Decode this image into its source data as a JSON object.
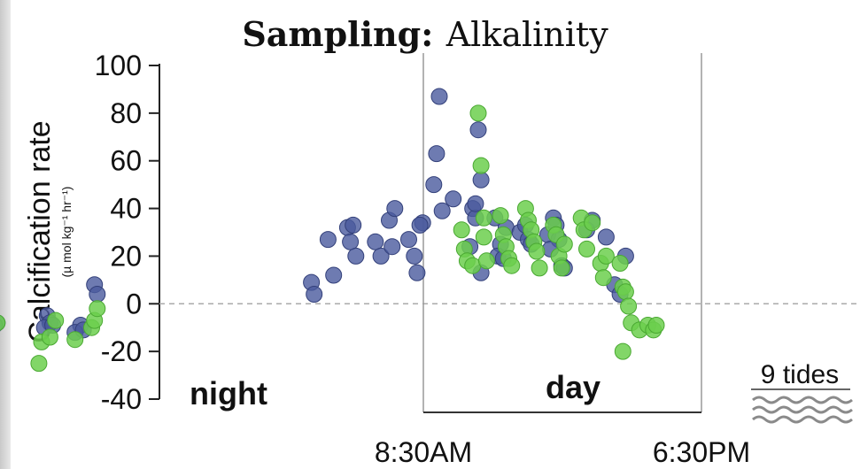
{
  "chart_data": {
    "type": "scatter",
    "title_bold": "Sampling:",
    "title_rest": "Alkalinity",
    "ylabel": "Calcification rate",
    "ylabel_units": "(µ mol kg⁻¹ hr⁻¹)",
    "ylim": [
      -40,
      100
    ],
    "yticks": [
      "100",
      "80",
      "60",
      "40",
      "20",
      "0",
      "-20",
      "-40"
    ],
    "ytick_values": [
      100,
      80,
      60,
      40,
      20,
      0,
      -20,
      -40
    ],
    "zero_line": true,
    "period_labels": {
      "night": "night",
      "day": "day"
    },
    "time_labels": {
      "start": "8:30AM",
      "end": "6:30PM"
    },
    "tides_label": "9 tides",
    "colors": {
      "blue": "#4a5a9e",
      "green": "#6ccf4e",
      "grid": "#999999"
    },
    "series": [
      {
        "color": "blue",
        "points": [
          [
            2.0,
            -7
          ],
          [
            2.2,
            -8
          ],
          [
            2.1,
            -9
          ],
          [
            4.0,
            -5
          ],
          [
            4.1,
            -8
          ],
          [
            3.9,
            -10
          ],
          [
            4.2,
            -9
          ],
          [
            5.2,
            -9
          ],
          [
            5.0,
            -12
          ],
          [
            5.3,
            -11
          ],
          [
            5.7,
            8
          ],
          [
            5.8,
            4
          ],
          [
            13.5,
            9
          ],
          [
            13.6,
            4
          ],
          [
            14.1,
            27
          ],
          [
            14.3,
            12
          ],
          [
            14.8,
            32
          ],
          [
            15.0,
            33
          ],
          [
            14.9,
            26
          ],
          [
            15.1,
            20
          ],
          [
            15.8,
            26
          ],
          [
            16.0,
            20
          ],
          [
            16.3,
            35
          ],
          [
            16.5,
            40
          ],
          [
            16.4,
            24
          ],
          [
            17.0,
            27
          ],
          [
            17.2,
            20
          ],
          [
            17.3,
            13
          ],
          [
            17.5,
            34
          ],
          [
            17.4,
            33
          ],
          [
            17.9,
            50
          ],
          [
            18.0,
            63
          ],
          [
            18.1,
            87
          ],
          [
            18.2,
            39
          ],
          [
            18.6,
            44
          ],
          [
            19.3,
            40
          ],
          [
            19.4,
            36
          ],
          [
            19.5,
            73
          ],
          [
            19.6,
            52
          ],
          [
            19.4,
            42
          ],
          [
            19.2,
            24
          ],
          [
            19.6,
            13
          ],
          [
            20.1,
            36
          ],
          [
            20.3,
            25
          ],
          [
            20.2,
            20
          ],
          [
            20.4,
            19
          ],
          [
            20.5,
            32
          ],
          [
            21.0,
            30
          ],
          [
            21.2,
            33
          ],
          [
            21.3,
            27
          ],
          [
            21.4,
            25
          ],
          [
            22.0,
            29
          ],
          [
            22.2,
            36
          ],
          [
            22.3,
            33
          ],
          [
            22.4,
            27
          ],
          [
            22.1,
            23
          ],
          [
            22.5,
            16
          ],
          [
            22.6,
            15
          ],
          [
            23.4,
            31
          ],
          [
            23.6,
            35
          ],
          [
            24.1,
            28
          ],
          [
            24.4,
            8
          ],
          [
            24.6,
            4
          ],
          [
            24.8,
            20
          ]
        ]
      },
      {
        "color": "green",
        "points": [
          [
            1.9,
            -10
          ],
          [
            1.9,
            -21
          ],
          [
            2.2,
            -8
          ],
          [
            3.8,
            -16
          ],
          [
            3.7,
            -25
          ],
          [
            4.1,
            -14
          ],
          [
            4.3,
            -7
          ],
          [
            5.0,
            -15
          ],
          [
            5.6,
            -10
          ],
          [
            5.7,
            -7
          ],
          [
            5.8,
            -2
          ],
          [
            18.9,
            31
          ],
          [
            19.0,
            23
          ],
          [
            19.1,
            18
          ],
          [
            19.3,
            16
          ],
          [
            19.5,
            80
          ],
          [
            19.6,
            58
          ],
          [
            19.7,
            36
          ],
          [
            19.7,
            28
          ],
          [
            19.8,
            18
          ],
          [
            20.3,
            37
          ],
          [
            20.4,
            29
          ],
          [
            20.5,
            24
          ],
          [
            20.6,
            19
          ],
          [
            20.7,
            16
          ],
          [
            21.2,
            40
          ],
          [
            21.3,
            35
          ],
          [
            21.4,
            31
          ],
          [
            21.5,
            26
          ],
          [
            21.6,
            22
          ],
          [
            21.7,
            15
          ],
          [
            22.2,
            33
          ],
          [
            22.3,
            29
          ],
          [
            22.4,
            20
          ],
          [
            22.5,
            15
          ],
          [
            22.6,
            25
          ],
          [
            23.2,
            36
          ],
          [
            23.3,
            31
          ],
          [
            23.4,
            23
          ],
          [
            23.6,
            34
          ],
          [
            23.9,
            17
          ],
          [
            24.0,
            11
          ],
          [
            24.1,
            20
          ],
          [
            24.6,
            17
          ],
          [
            24.7,
            7
          ],
          [
            24.8,
            5
          ],
          [
            24.9,
            -1
          ],
          [
            25.0,
            -8
          ],
          [
            25.3,
            -11
          ],
          [
            25.6,
            -9
          ],
          [
            25.8,
            -11
          ],
          [
            25.9,
            -9
          ],
          [
            24.7,
            -20
          ]
        ]
      }
    ]
  }
}
